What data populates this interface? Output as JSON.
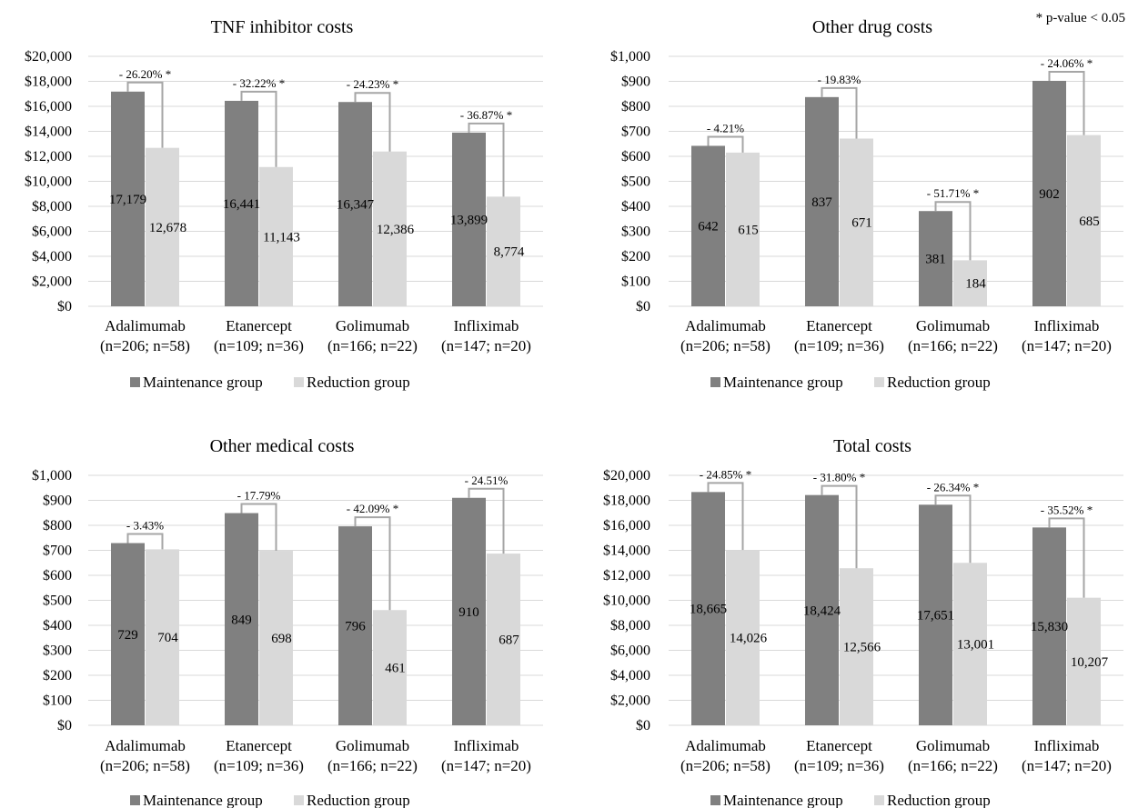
{
  "footnote": "* p-value < 0.05",
  "legend": {
    "maintenance": "Maintenance group",
    "reduction": "Reduction group"
  },
  "colors": {
    "maintenance": "#808080",
    "reduction": "#d9d9d9",
    "grid": "#d9d9d9",
    "bracket": "#a6a6a6"
  },
  "chart_data": [
    {
      "type": "bar",
      "title": "TNF inhibitor costs",
      "categories": [
        "Adalimumab",
        "Etanercept",
        "Golimumab",
        "Infliximab"
      ],
      "category_notes": [
        "(n=206; n=58)",
        "(n=109; n=36)",
        "(n=166; n=22)",
        "(n=147; n=20)"
      ],
      "series": [
        {
          "name": "Maintenance group",
          "values": [
            17179,
            16441,
            16347,
            13899
          ]
        },
        {
          "name": "Reduction group",
          "values": [
            12678,
            11143,
            12386,
            8774
          ]
        }
      ],
      "data_labels": [
        [
          "17,179",
          "16,441",
          "16,347",
          "13,899"
        ],
        [
          "12,678",
          "11,143",
          "12,386",
          "8,774"
        ]
      ],
      "changes": [
        "- 26.20% *",
        "- 32.22% *",
        "- 24.23% *",
        "- 36.87% *"
      ],
      "ylim": [
        0,
        20000
      ],
      "yticks": [
        0,
        2000,
        4000,
        6000,
        8000,
        10000,
        12000,
        14000,
        16000,
        18000,
        20000
      ],
      "ytick_labels": [
        "$0",
        "$2,000",
        "$4,000",
        "$6,000",
        "$8,000",
        "$10,000",
        "$12,000",
        "$14,000",
        "$16,000",
        "$18,000",
        "$20,000"
      ],
      "grid": true,
      "legend_position": "bottom"
    },
    {
      "type": "bar",
      "title": "Other drug costs",
      "categories": [
        "Adalimumab",
        "Etanercept",
        "Golimumab",
        "Infliximab"
      ],
      "category_notes": [
        "(n=206; n=58)",
        "(n=109; n=36)",
        "(n=166; n=22)",
        "(n=147; n=20)"
      ],
      "series": [
        {
          "name": "Maintenance group",
          "values": [
            642,
            837,
            381,
            902
          ]
        },
        {
          "name": "Reduction group",
          "values": [
            615,
            671,
            184,
            685
          ]
        }
      ],
      "data_labels": [
        [
          "642",
          "837",
          "381",
          "902"
        ],
        [
          "615",
          "671",
          "184",
          "685"
        ]
      ],
      "changes": [
        "- 4.21%",
        "- 19.83%",
        "- 51.71% *",
        "- 24.06% *"
      ],
      "ylim": [
        0,
        1000
      ],
      "yticks": [
        0,
        100,
        200,
        300,
        400,
        500,
        600,
        700,
        800,
        900,
        1000
      ],
      "ytick_labels": [
        "$0",
        "$100",
        "$200",
        "$300",
        "$400",
        "$500",
        "$600",
        "$700",
        "$800",
        "$900",
        "$1,000"
      ],
      "grid": true,
      "legend_position": "bottom"
    },
    {
      "type": "bar",
      "title": "Other medical costs",
      "categories": [
        "Adalimumab",
        "Etanercept",
        "Golimumab",
        "Infliximab"
      ],
      "category_notes": [
        "(n=206; n=58)",
        "(n=109; n=36)",
        "(n=166; n=22)",
        "(n=147; n=20)"
      ],
      "series": [
        {
          "name": "Maintenance group",
          "values": [
            729,
            849,
            796,
            910
          ]
        },
        {
          "name": "Reduction group",
          "values": [
            704,
            698,
            461,
            687
          ]
        }
      ],
      "data_labels": [
        [
          "729",
          "849",
          "796",
          "910"
        ],
        [
          "704",
          "698",
          "461",
          "687"
        ]
      ],
      "changes": [
        "- 3.43%",
        "- 17.79%",
        "- 42.09% *",
        "- 24.51%"
      ],
      "ylim": [
        0,
        1000
      ],
      "yticks": [
        0,
        100,
        200,
        300,
        400,
        500,
        600,
        700,
        800,
        900,
        1000
      ],
      "ytick_labels": [
        "$0",
        "$100",
        "$200",
        "$300",
        "$400",
        "$500",
        "$600",
        "$700",
        "$800",
        "$900",
        "$1,000"
      ],
      "grid": true,
      "legend_position": "bottom"
    },
    {
      "type": "bar",
      "title": "Total costs",
      "categories": [
        "Adalimumab",
        "Etanercept",
        "Golimumab",
        "Infliximab"
      ],
      "category_notes": [
        "(n=206; n=58)",
        "(n=109; n=36)",
        "(n=166; n=22)",
        "(n=147; n=20)"
      ],
      "series": [
        {
          "name": "Maintenance group",
          "values": [
            18665,
            18424,
            17651,
            15830
          ]
        },
        {
          "name": "Reduction group",
          "values": [
            14026,
            12566,
            13001,
            10207
          ]
        }
      ],
      "data_labels": [
        [
          "18,665",
          "18,424",
          "17,651",
          "15,830"
        ],
        [
          "14,026",
          "12,566",
          "13,001",
          "10,207"
        ]
      ],
      "changes": [
        "- 24.85% *",
        "- 31.80% *",
        "- 26.34% *",
        "- 35.52% *"
      ],
      "ylim": [
        0,
        20000
      ],
      "yticks": [
        0,
        2000,
        4000,
        6000,
        8000,
        10000,
        12000,
        14000,
        16000,
        18000,
        20000
      ],
      "ytick_labels": [
        "$0",
        "$2,000",
        "$4,000",
        "$6,000",
        "$8,000",
        "$10,000",
        "$12,000",
        "$14,000",
        "$16,000",
        "$18,000",
        "$20,000"
      ],
      "grid": true,
      "legend_position": "bottom"
    }
  ]
}
